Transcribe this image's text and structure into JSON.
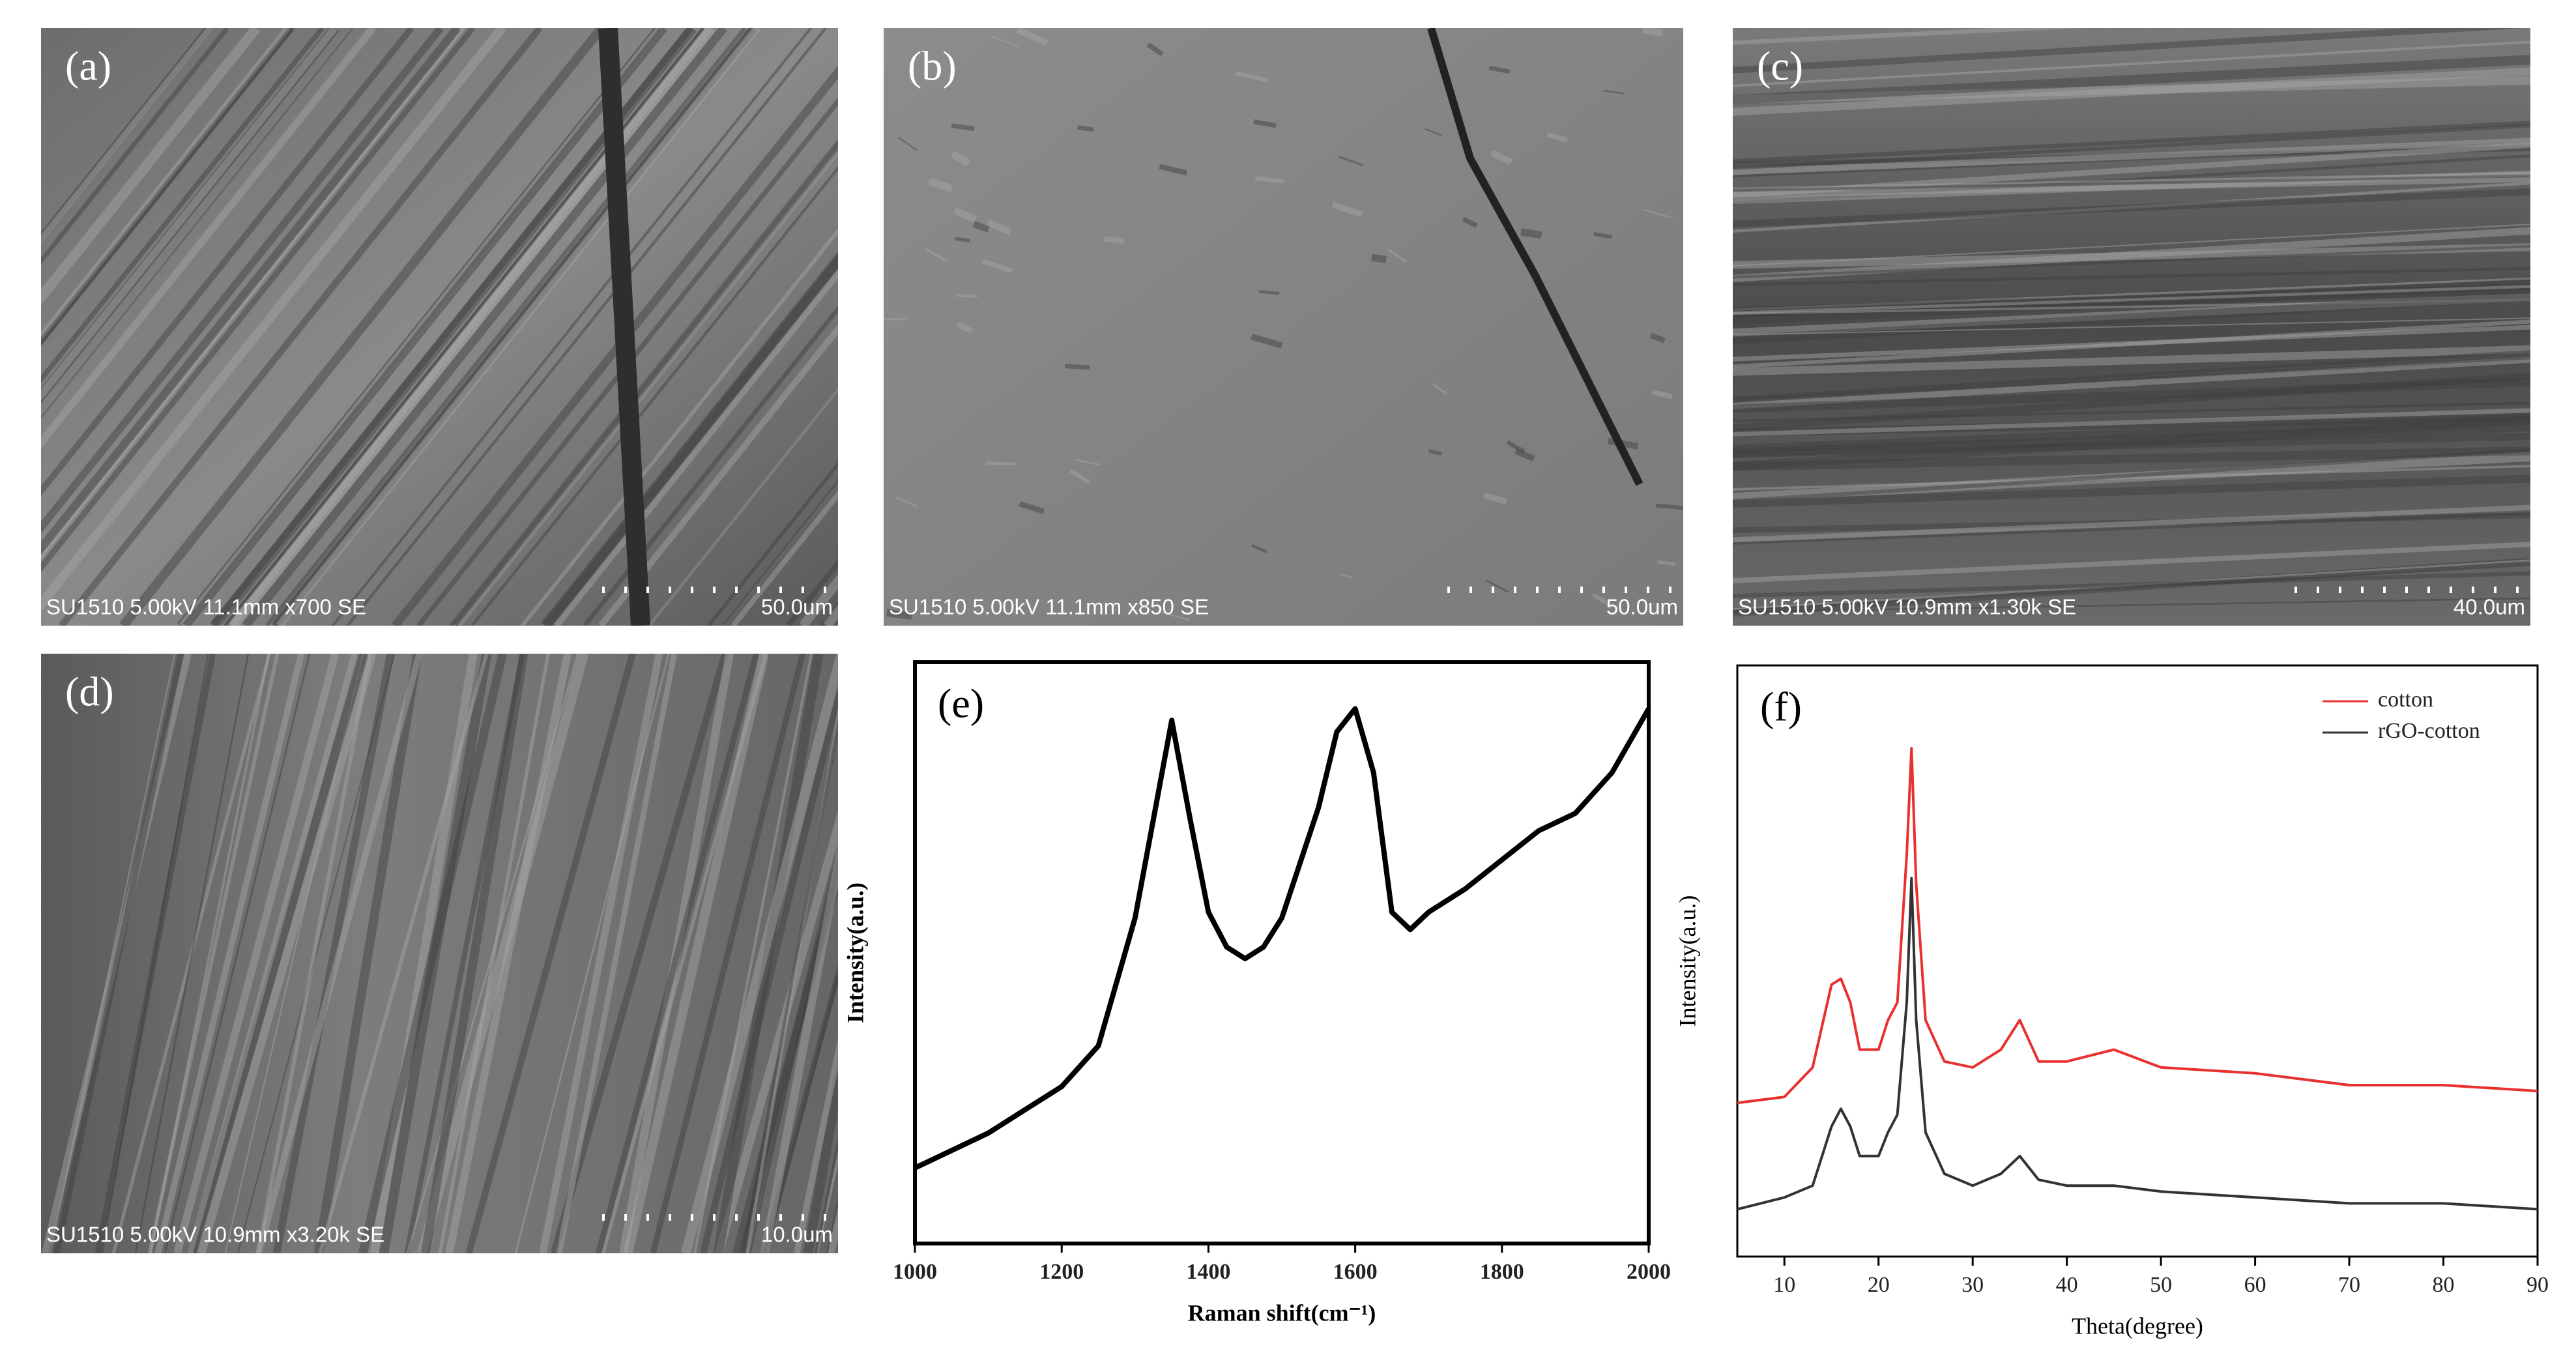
{
  "images": [
    {
      "label": "(a)",
      "caption": "SU1510 5.00kV 11.1mm x700 SE",
      "scale": "50.0um"
    },
    {
      "label": "(b)",
      "caption": "SU1510 5.00kV 11.1mm x850 SE",
      "scale": "50.0um"
    },
    {
      "label": "(c)",
      "caption": "SU1510 5.00kV 10.9mm x1.30k SE",
      "scale": "40.0um"
    },
    {
      "label": "(d)",
      "caption": "SU1510 5.00kV 10.9mm x3.20k SE",
      "scale": "10.0um"
    }
  ],
  "chart_data": [
    {
      "type": "line",
      "label": "(e)",
      "xlabel": "Raman shift(cm⁻¹)",
      "ylabel": "Intensity(a.u.)",
      "color": "#000000",
      "x": [
        1000,
        1050,
        1100,
        1150,
        1200,
        1250,
        1300,
        1325,
        1350,
        1375,
        1400,
        1425,
        1450,
        1475,
        1500,
        1550,
        1575,
        1600,
        1625,
        1650,
        1675,
        1700,
        1750,
        1800,
        1850,
        1900,
        1950,
        2000
      ],
      "values": [
        13,
        16,
        19,
        23,
        27,
        34,
        56,
        73,
        90,
        73,
        57,
        51,
        49,
        51,
        56,
        75,
        88,
        92,
        81,
        57,
        54,
        57,
        61,
        66,
        71,
        74,
        81,
        92
      ],
      "xlim": [
        1000,
        2000
      ],
      "ylim": [
        0,
        100
      ],
      "xticks": [
        1000,
        1200,
        1400,
        1600,
        1800,
        2000
      ]
    },
    {
      "type": "line",
      "label": "(f)",
      "xlabel": "Theta(degree)",
      "ylabel": "Intensity(a.u.)",
      "legend": "upper right",
      "x": [
        5,
        10,
        13,
        15,
        16,
        17,
        18,
        20,
        21,
        22,
        23,
        23.5,
        24,
        25,
        27,
        30,
        33,
        35,
        37,
        40,
        45,
        50,
        60,
        70,
        80,
        90
      ],
      "series": [
        {
          "name": "cotton",
          "color": "#e8312f",
          "values": [
            26,
            27,
            32,
            46,
            47,
            43,
            35,
            35,
            40,
            43,
            68,
            86,
            63,
            40,
            33,
            32,
            35,
            40,
            33,
            33,
            35,
            32,
            31,
            29,
            29,
            28
          ]
        },
        {
          "name": "rGO-cotton",
          "color": "#333333",
          "values": [
            8,
            10,
            12,
            22,
            25,
            22,
            17,
            17,
            21,
            24,
            43,
            64,
            40,
            21,
            14,
            12,
            14,
            17,
            13,
            12,
            12,
            11,
            10,
            9,
            9,
            8
          ]
        }
      ],
      "xlim": [
        5,
        90
      ],
      "ylim": [
        0,
        100
      ],
      "xticks": [
        10,
        20,
        30,
        40,
        50,
        60,
        70,
        80,
        90
      ]
    }
  ]
}
